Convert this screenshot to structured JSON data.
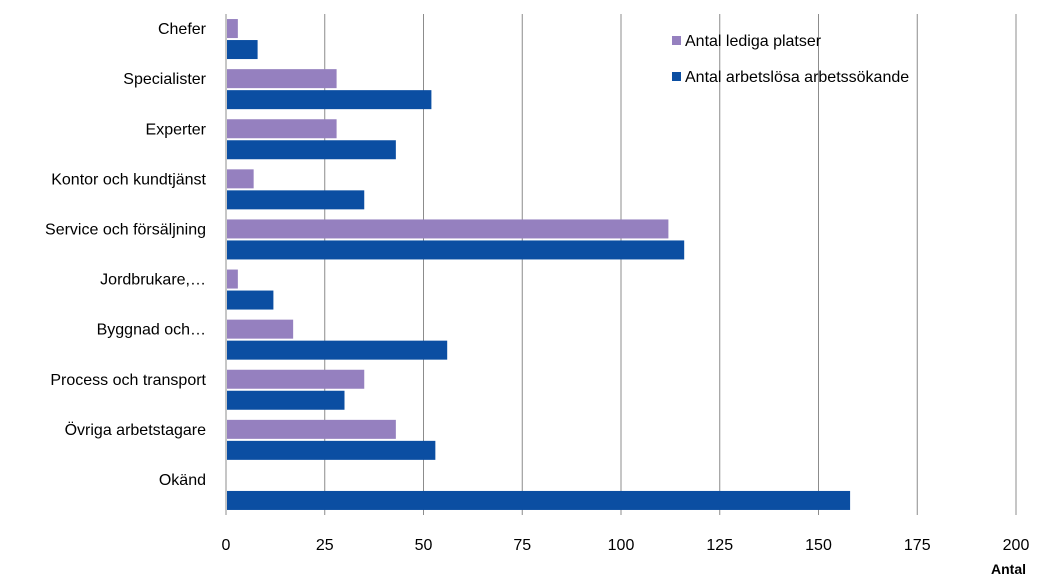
{
  "chart_data": {
    "type": "bar",
    "orientation": "horizontal",
    "categories": [
      "Chefer",
      "Specialister",
      "Experter",
      "Kontor och kundtjänst",
      "Service och försäljning",
      "Jordbrukare,…",
      "Byggnad och…",
      "Process och transport",
      "Övriga arbetstagare",
      "Okänd"
    ],
    "series": [
      {
        "name": "Antal lediga platser",
        "color": "#9580bf",
        "values": [
          3,
          28,
          28,
          7,
          112,
          3,
          17,
          35,
          43,
          0
        ]
      },
      {
        "name": "Antal arbetslösa arbetssökande",
        "color": "#0b4ea2",
        "values": [
          8,
          52,
          43,
          35,
          116,
          12,
          56,
          30,
          53,
          158
        ]
      }
    ],
    "xlim": [
      0,
      200
    ],
    "xticks": [
      "0",
      "25",
      "50",
      "75",
      "100",
      "125",
      "150",
      "175",
      "200"
    ],
    "xlabel": "Antal",
    "grid": "vertical",
    "legend_position": "top-right"
  }
}
